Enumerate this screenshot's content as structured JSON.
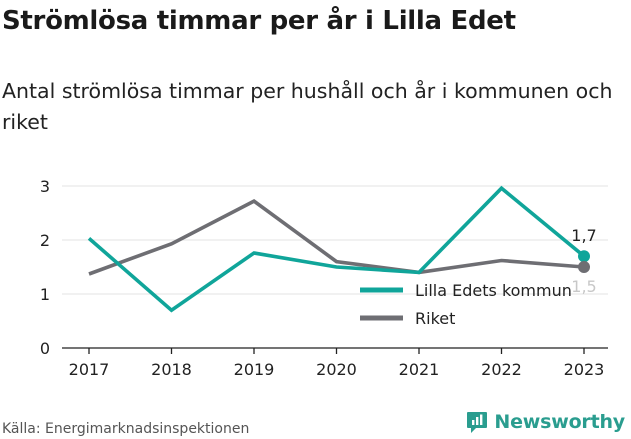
{
  "title": "Strömlösa timmar per år i Lilla Edet",
  "subtitle": "Antal strömlösa timmar per hushåll och år i kommunen och riket",
  "source": "Källa: Energimarknadsinspektionen",
  "brand": {
    "name": "Newsworthy",
    "icon": "newsworthy-logo-icon"
  },
  "chart_data": {
    "type": "line",
    "categories": [
      "2017",
      "2018",
      "2019",
      "2020",
      "2021",
      "2022",
      "2023"
    ],
    "ylim": [
      0,
      3
    ],
    "yticks": [
      "0",
      "1",
      "2",
      "3"
    ],
    "grid": true,
    "legend_placement": "right",
    "series": [
      {
        "name": "Lilla Edets kommun",
        "color": "#10a59a",
        "values": [
          2.03,
          0.7,
          1.76,
          1.5,
          1.4,
          2.96,
          1.7
        ],
        "end_label": "1,7"
      },
      {
        "name": "Riket",
        "color": "#6e6e73",
        "values": [
          1.37,
          1.93,
          2.72,
          1.6,
          1.4,
          1.62,
          1.5
        ],
        "end_label": "1,5"
      }
    ]
  }
}
